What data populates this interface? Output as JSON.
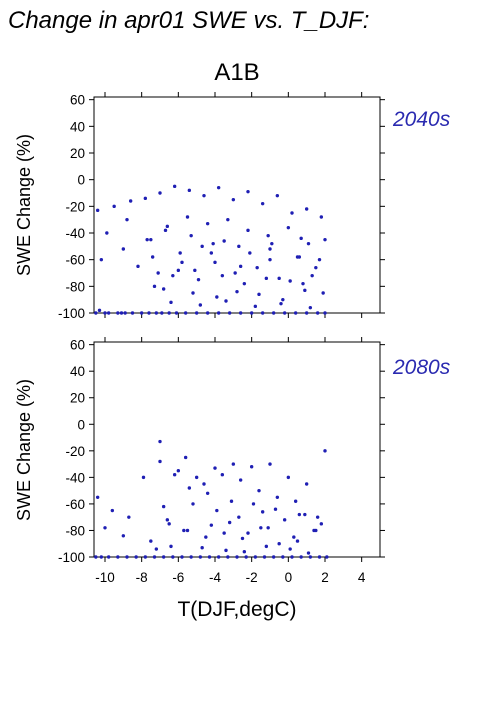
{
  "figure": {
    "title": "Change in apr01 SWE vs. T_DJF:",
    "scenario": "A1B",
    "xlabel": "T(DJF,degC)",
    "ylabel": "SWE Change (%)"
  },
  "colors": {
    "points": "#1f1fb4",
    "era_label": "#2a2ab0",
    "axes": "#000000"
  },
  "chart_data": [
    {
      "type": "scatter",
      "title": "2040s",
      "xlabel": "",
      "ylabel": "SWE Change (%)",
      "xlim": [
        -10.6,
        5
      ],
      "ylim": [
        -100,
        62
      ],
      "xticks": [
        -10,
        -8,
        -6,
        -4,
        -2,
        0,
        2,
        4
      ],
      "yticks": [
        60,
        40,
        20,
        0,
        -20,
        -40,
        -60,
        -80,
        -100
      ],
      "grid": false,
      "series": [
        {
          "x": [
            -10.5,
            -10.3,
            -10.0,
            -9.8,
            -9.3,
            -9.1,
            -8.9,
            -8.5,
            -8.0,
            -7.6,
            -7.2,
            -6.9,
            -6.5,
            -6.1,
            -5.6,
            -5.0,
            -4.4,
            -3.8,
            -3.2,
            -2.6,
            -2.0,
            -1.4,
            -0.8,
            -0.2,
            0.4,
            1.0,
            1.6,
            2.0,
            -10.4,
            -9.5,
            -8.6,
            -7.8,
            -7.0,
            -6.2,
            -5.4,
            -4.6,
            -3.8,
            -3.0,
            -2.2,
            -1.4,
            -0.6,
            0.2,
            1.0,
            1.8,
            -9.9,
            -8.8,
            -7.7,
            -6.6,
            -5.5,
            -4.4,
            -3.3,
            -2.2,
            -1.1,
            0.0,
            1.1,
            2.0,
            -10.2,
            -9.0,
            -7.4,
            -5.8,
            -4.2,
            -2.6,
            -1.0,
            0.6,
            1.5,
            -7.1,
            -6.0,
            -4.9,
            -3.6,
            -2.4,
            -1.2,
            0.1,
            1.3,
            -6.8,
            -5.2,
            -3.9,
            -2.8,
            -1.6,
            -0.3,
            0.9,
            -6.4,
            -4.8,
            -3.4,
            -1.8,
            -0.4,
            1.2,
            -5.9,
            -4.1,
            -2.7,
            -1.0,
            0.5,
            -7.5,
            -6.7,
            -5.3,
            -4.7,
            -3.5,
            -2.1,
            -0.9,
            0.7,
            1.7,
            -8.2,
            -7.3,
            -6.3,
            -5.1,
            -4.0,
            -2.9,
            -1.7,
            -0.5,
            0.8,
            1.9
          ],
          "y": [
            -100,
            -98,
            -100,
            -100,
            -100,
            -100,
            -100,
            -100,
            -100,
            -100,
            -100,
            -100,
            -100,
            -100,
            -100,
            -100,
            -100,
            -100,
            -100,
            -100,
            -100,
            -100,
            -100,
            -100,
            -100,
            -100,
            -100,
            -100,
            -23,
            -20,
            -16,
            -14,
            -10,
            -5,
            -8,
            -12,
            -6,
            -15,
            -9,
            -18,
            -12,
            -25,
            -22,
            -28,
            -40,
            -30,
            -45,
            -35,
            -28,
            -33,
            -30,
            -38,
            -42,
            -36,
            -48,
            -45,
            -60,
            -52,
            -58,
            -62,
            -55,
            -65,
            -60,
            -58,
            -66,
            -70,
            -68,
            -75,
            -72,
            -78,
            -74,
            -76,
            -72,
            -82,
            -85,
            -88,
            -84,
            -86,
            -90,
            -83,
            -92,
            -94,
            -91,
            -95,
            -93,
            -96,
            -55,
            -48,
            -50,
            -52,
            -58,
            -45,
            -38,
            -42,
            -50,
            -46,
            -55,
            -48,
            -44,
            -60,
            -65,
            -80,
            -72,
            -68,
            -62,
            -70,
            -66,
            -74,
            -78,
            -85
          ]
        }
      ]
    },
    {
      "type": "scatter",
      "title": "2080s",
      "xlabel": "T(DJF,degC)",
      "ylabel": "SWE Change (%)",
      "xlim": [
        -10.6,
        5
      ],
      "ylim": [
        -100,
        62
      ],
      "xticks": [
        -10,
        -8,
        -6,
        -4,
        -2,
        0,
        2,
        4
      ],
      "yticks": [
        60,
        40,
        20,
        0,
        -20,
        -40,
        -60,
        -80,
        -100
      ],
      "grid": false,
      "series": [
        {
          "x": [
            -10.5,
            -10.2,
            -9.8,
            -9.3,
            -8.8,
            -8.3,
            -7.8,
            -7.3,
            -6.8,
            -6.3,
            -5.8,
            -5.3,
            -4.8,
            -4.3,
            -3.8,
            -3.3,
            -2.8,
            -2.3,
            -1.8,
            -1.3,
            -0.8,
            -0.3,
            0.2,
            0.7,
            1.2,
            1.7,
            2.1,
            -10.4,
            -9.6,
            -8.7,
            -7.9,
            -7.0,
            -6.0,
            -5.0,
            -4.0,
            -3.0,
            -2.0,
            -1.0,
            0.0,
            1.0,
            2.0,
            -10.0,
            -9.0,
            -7.5,
            -6.5,
            -5.5,
            -4.5,
            -3.5,
            -2.5,
            -1.5,
            -0.5,
            0.5,
            1.5,
            -7.0,
            -6.2,
            -5.6,
            -4.6,
            -3.6,
            -2.6,
            -1.6,
            -0.6,
            0.4,
            -6.8,
            -5.2,
            -3.9,
            -2.7,
            -1.4,
            -0.2,
            0.9,
            1.8,
            -6.6,
            -5.7,
            -4.2,
            -3.2,
            -2.2,
            -1.1,
            0.3,
            1.4,
            -7.2,
            -6.4,
            -4.7,
            -3.4,
            -2.4,
            -1.2,
            0.1,
            1.1,
            -5.4,
            -4.4,
            -3.1,
            -1.9,
            -0.7,
            0.6,
            1.6
          ],
          "y": [
            -100,
            -100,
            -100,
            -100,
            -100,
            -100,
            -100,
            -100,
            -100,
            -100,
            -100,
            -100,
            -100,
            -100,
            -100,
            -100,
            -100,
            -100,
            -100,
            -100,
            -100,
            -100,
            -100,
            -100,
            -100,
            -100,
            -100,
            -55,
            -65,
            -70,
            -40,
            -28,
            -35,
            -40,
            -33,
            -30,
            -32,
            -30,
            -40,
            -45,
            -20,
            -78,
            -84,
            -88,
            -75,
            -80,
            -85,
            -82,
            -86,
            -78,
            -90,
            -88,
            -80,
            -13,
            -38,
            -25,
            -45,
            -38,
            -42,
            -50,
            -55,
            -58,
            -62,
            -60,
            -65,
            -70,
            -66,
            -72,
            -68,
            -75,
            -72,
            -80,
            -76,
            -74,
            -82,
            -78,
            -85,
            -80,
            -94,
            -92,
            -93,
            -95,
            -96,
            -92,
            -94,
            -97,
            -48,
            -52,
            -58,
            -60,
            -64,
            -68,
            -70
          ]
        }
      ]
    }
  ]
}
